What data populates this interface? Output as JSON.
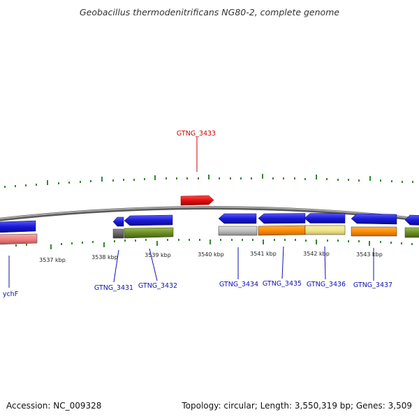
{
  "title": "Geobacillus thermodenitrificans NG80-2, complete genome",
  "footer": {
    "accession": "Accession: NC_009328",
    "summary": "Topology: circular; Length: 3,550,319 bp; Genes: 3,509"
  },
  "colors": {
    "backbone": "#8f8f8f",
    "tick": "#2e8b2e",
    "forward_gene": "#e01010",
    "reverse_gene": "#1a1ad6",
    "olive": "#6b8e23",
    "orange": "#ff8c00",
    "khaki": "#f0e68c",
    "pink": "#f08080",
    "gray": "#c0c0c0",
    "dark_gray": "#666666",
    "label_forward": "#d00000",
    "label_reverse": "#1010b0"
  },
  "position_labels": [
    "3537 kbp",
    "3538 kbp",
    "3539 kbp",
    "3540 kbp",
    "3541 kbp",
    "3542 kbp",
    "3543 kbp"
  ],
  "gene_labels": [
    {
      "text": "GTNG_3433",
      "strand": "forward"
    },
    {
      "text": "ychF",
      "strand": "reverse"
    },
    {
      "text": "GTNG_3431",
      "strand": "reverse"
    },
    {
      "text": "GTNG_3432",
      "strand": "reverse"
    },
    {
      "text": "GTNG_3434",
      "strand": "reverse"
    },
    {
      "text": "GTNG_3435",
      "strand": "reverse"
    },
    {
      "text": "GTNG_3436",
      "strand": "reverse"
    },
    {
      "text": "GTNG_3437",
      "strand": "reverse"
    }
  ]
}
